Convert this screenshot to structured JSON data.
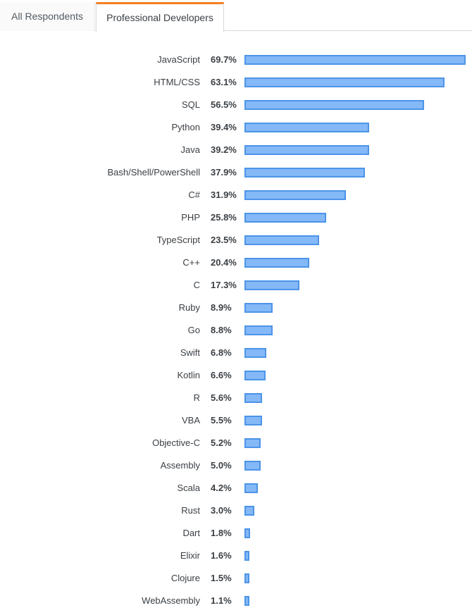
{
  "tabs": [
    {
      "label": "All Respondents",
      "active": false
    },
    {
      "label": "Professional Developers",
      "active": true
    }
  ],
  "colors": {
    "bar_fill": "#84b8f7",
    "bar_border": "#4c94e8",
    "active_tab_accent": "#f48024"
  },
  "chart_data": {
    "type": "bar",
    "orientation": "horizontal",
    "unit": "%",
    "categories": [
      "JavaScript",
      "HTML/CSS",
      "SQL",
      "Python",
      "Java",
      "Bash/Shell/PowerShell",
      "C#",
      "PHP",
      "TypeScript",
      "C++",
      "C",
      "Ruby",
      "Go",
      "Swift",
      "Kotlin",
      "R",
      "VBA",
      "Objective-C",
      "Assembly",
      "Scala",
      "Rust",
      "Dart",
      "Elixir",
      "Clojure",
      "WebAssembly"
    ],
    "values": [
      69.7,
      63.1,
      56.5,
      39.4,
      39.2,
      37.9,
      31.9,
      25.8,
      23.5,
      20.4,
      17.3,
      8.9,
      8.8,
      6.8,
      6.6,
      5.6,
      5.5,
      5.2,
      5.0,
      4.2,
      3.0,
      1.8,
      1.6,
      1.5,
      1.1
    ],
    "labels": [
      "69.7%",
      "63.1%",
      "56.5%",
      "39.4%",
      "39.2%",
      "37.9%",
      "31.9%",
      "25.8%",
      "23.5%",
      "20.4%",
      "17.3%",
      "8.9%",
      "8.8%",
      "6.8%",
      "6.6%",
      "5.6%",
      "5.5%",
      "5.2%",
      "5.0%",
      "4.2%",
      "3.0%",
      "1.8%",
      "1.6%",
      "1.5%",
      "1.1%"
    ],
    "xlim": [
      0,
      69.7
    ],
    "grid": false,
    "legend": "none"
  }
}
